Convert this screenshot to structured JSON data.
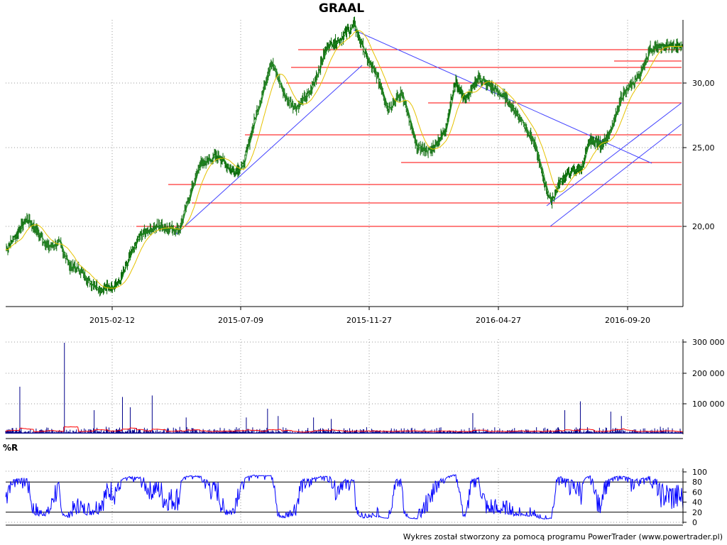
{
  "title": "GRAAL",
  "wr_label": "%R",
  "footer": "Wykres został stworzony za pomocą programu PowerTrader (www.powertrader.pl)",
  "colors": {
    "candle": "#0b6b0b",
    "ma_short": "#1a8f1a",
    "ma_long": "#e6c200",
    "resistance": "#ff0000",
    "trendline": "#4444ff",
    "volume": "#00008b",
    "volume_ma": "#ff0000",
    "wr": "#0000ff"
  },
  "chart_data": [
    {
      "type": "line",
      "name": "price",
      "x_ticks": [
        "2015-02-12",
        "2015-07-09",
        "2015-11-27",
        "2016-04-27",
        "2016-09-20"
      ],
      "y_ticks": [
        "20,00",
        "25,00",
        "30,00"
      ],
      "ylim": [
        15.5,
        33.5
      ],
      "anchors": [
        [
          0,
          18.5
        ],
        [
          15,
          19.5
        ],
        [
          30,
          20.5
        ],
        [
          45,
          19.6
        ],
        [
          60,
          18.7
        ],
        [
          75,
          19.0
        ],
        [
          90,
          17.5
        ],
        [
          105,
          17.2
        ],
        [
          120,
          16.4
        ],
        [
          135,
          16.0
        ],
        [
          160,
          16.4
        ],
        [
          175,
          18.0
        ],
        [
          190,
          19.5
        ],
        [
          215,
          20.0
        ],
        [
          245,
          19.8
        ],
        [
          260,
          22.0
        ],
        [
          275,
          24.0
        ],
        [
          300,
          24.5
        ],
        [
          320,
          23.5
        ],
        [
          335,
          23.8
        ],
        [
          350,
          26.5
        ],
        [
          375,
          30.5
        ],
        [
          395,
          28.2
        ],
        [
          410,
          27.5
        ],
        [
          430,
          28.5
        ],
        [
          455,
          31.5
        ],
        [
          470,
          31.8
        ],
        [
          492,
          32.8
        ],
        [
          510,
          30.7
        ],
        [
          525,
          29.5
        ],
        [
          540,
          27.5
        ],
        [
          560,
          28.5
        ],
        [
          580,
          25.0
        ],
        [
          600,
          24.8
        ],
        [
          620,
          26.0
        ],
        [
          635,
          29.2
        ],
        [
          650,
          28.0
        ],
        [
          668,
          29.5
        ],
        [
          690,
          28.7
        ],
        [
          705,
          28.2
        ],
        [
          725,
          27.0
        ],
        [
          745,
          25.5
        ],
        [
          760,
          23.0
        ],
        [
          770,
          21.5
        ],
        [
          785,
          23.0
        ],
        [
          800,
          23.5
        ],
        [
          815,
          23.8
        ],
        [
          825,
          25.5
        ],
        [
          840,
          25.2
        ],
        [
          855,
          26.0
        ],
        [
          870,
          28.3
        ],
        [
          885,
          29.0
        ],
        [
          900,
          30.0
        ],
        [
          910,
          31.3
        ],
        [
          930,
          31.4
        ],
        [
          957,
          31.4
        ]
      ],
      "moving_averages": [
        {
          "name": "short",
          "color": "#1a8f1a"
        },
        {
          "name": "long",
          "color": "#e6c200"
        }
      ]
    },
    {
      "type": "bar",
      "name": "volume",
      "y_ticks": [
        "100 000",
        "200 000",
        "300 000"
      ],
      "ylim": [
        0,
        310000
      ],
      "spikes": [
        [
          20,
          160000
        ],
        [
          83,
          310000
        ],
        [
          125,
          80000
        ],
        [
          165,
          125000
        ],
        [
          176,
          90000
        ],
        [
          207,
          130000
        ],
        [
          255,
          55000
        ],
        [
          340,
          55000
        ],
        [
          370,
          85000
        ],
        [
          385,
          60000
        ],
        [
          435,
          55000
        ],
        [
          460,
          50000
        ],
        [
          660,
          70000
        ],
        [
          790,
          80000
        ],
        [
          812,
          110000
        ],
        [
          855,
          75000
        ],
        [
          870,
          60000
        ]
      ]
    },
    {
      "type": "line",
      "name": "%R",
      "y_ticks": [
        "0",
        "20",
        "40",
        "60",
        "80",
        "100"
      ],
      "ylim": [
        0,
        100
      ],
      "levels": [
        20,
        80
      ]
    }
  ]
}
